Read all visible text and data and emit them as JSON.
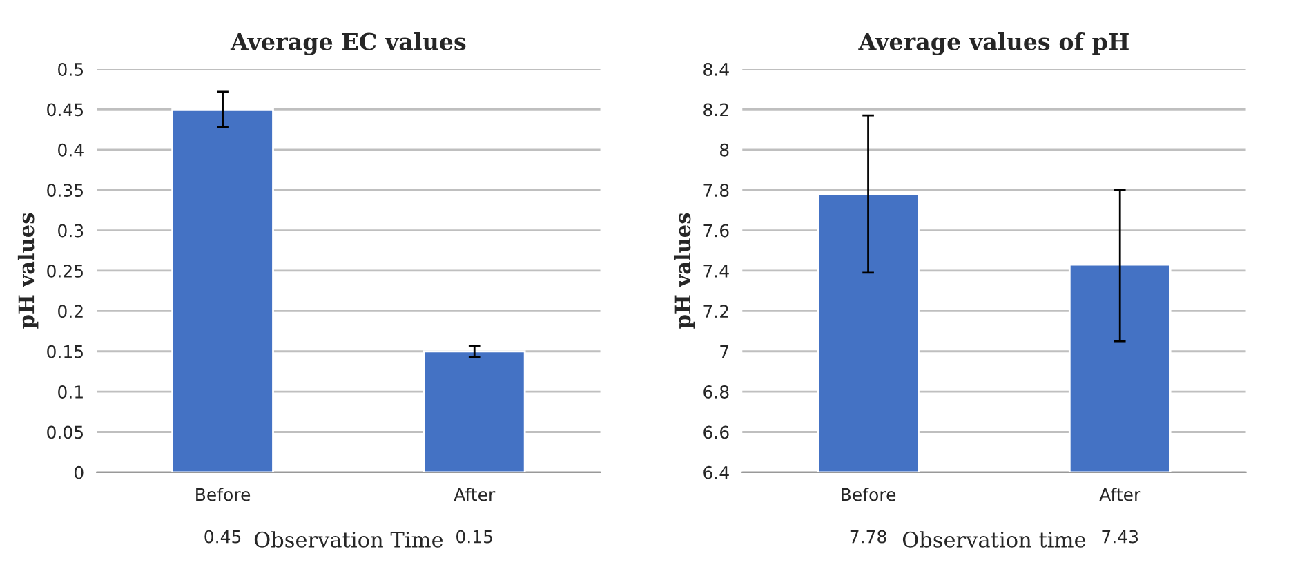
{
  "chart_data": [
    {
      "type": "bar",
      "title": "Average EC values",
      "xlabel": "Observation Time",
      "ylabel": "pH values",
      "categories": [
        "Before",
        "After"
      ],
      "values": [
        0.45,
        0.15
      ],
      "errors": [
        0.022,
        0.007
      ],
      "color": "#4472c4",
      "ylim": [
        0,
        0.5
      ],
      "yticks": [
        0,
        0.05,
        0.1,
        0.15,
        0.2,
        0.25,
        0.3,
        0.35,
        0.4,
        0.45,
        0.5
      ],
      "grid": "y",
      "data_labels": true
    },
    {
      "type": "bar",
      "title": "Average values of pH",
      "xlabel": "Observation time",
      "ylabel": "pH values",
      "categories": [
        "Before",
        "After"
      ],
      "values": [
        7.78,
        7.43
      ],
      "errors": [
        [
          7.39,
          8.17
        ],
        [
          7.05,
          7.8
        ]
      ],
      "color": "#4472c4",
      "ylim": [
        6.4,
        8.4
      ],
      "yticks": [
        6.4,
        6.6,
        6.8,
        7,
        7.2,
        7.4,
        7.6,
        7.8,
        8,
        8.2,
        8.4
      ],
      "grid": "y",
      "data_labels": true
    }
  ]
}
